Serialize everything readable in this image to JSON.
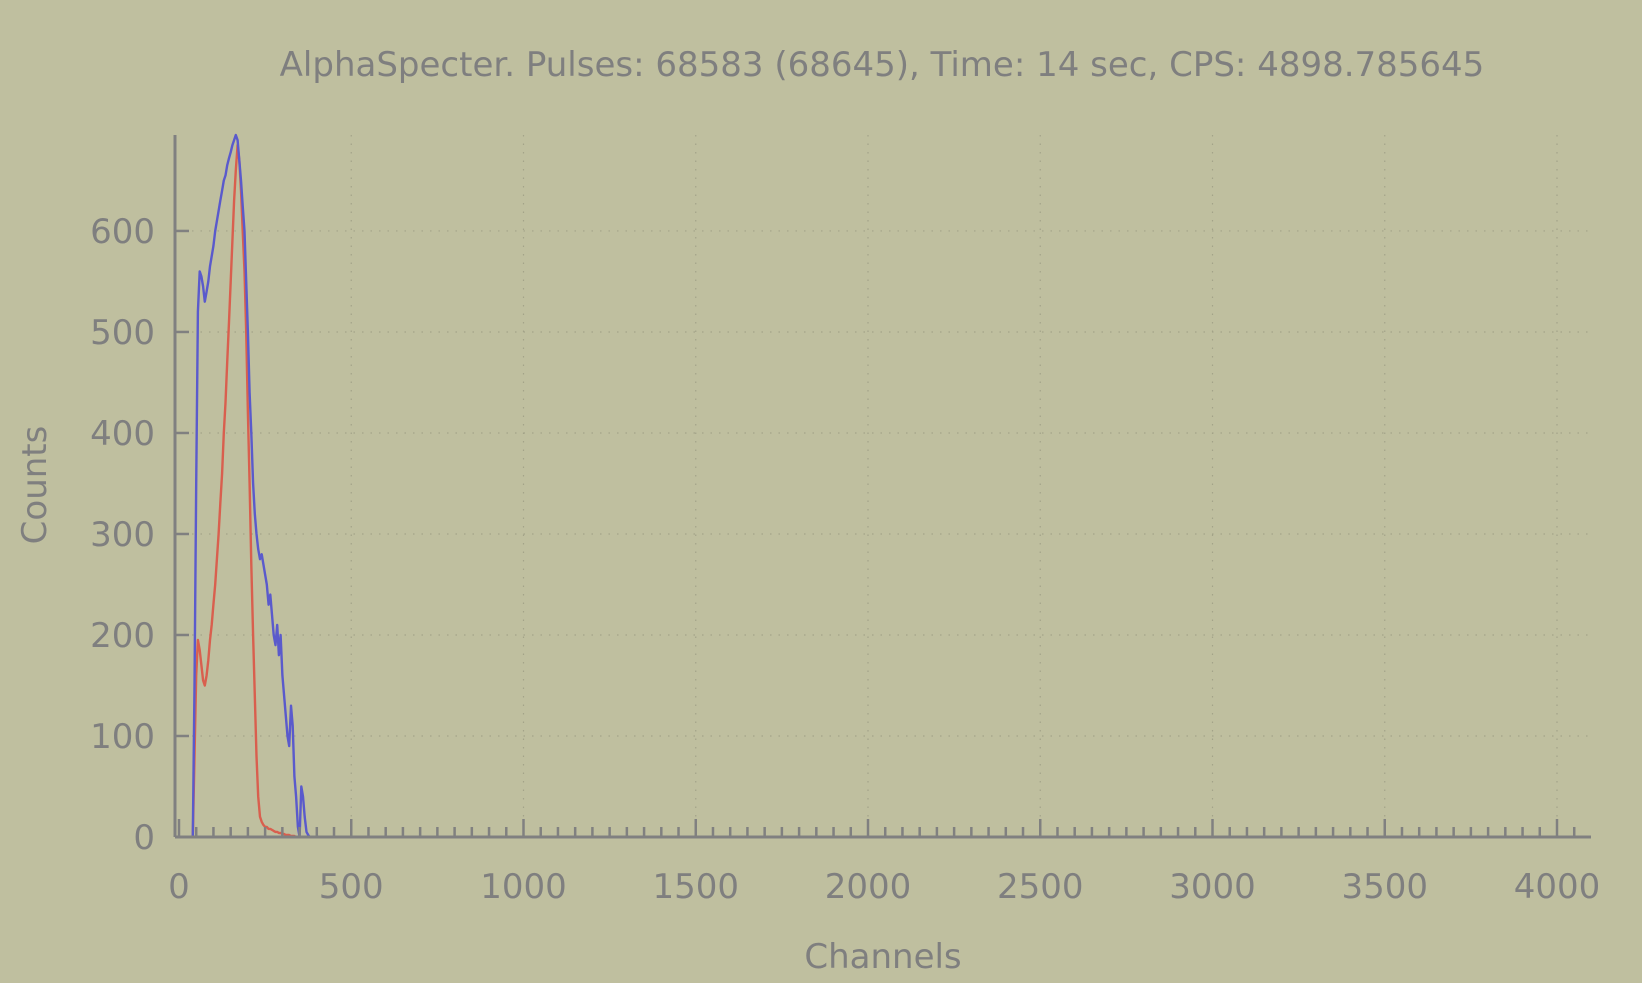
{
  "chart_data": {
    "type": "line",
    "title": "AlphaSpecter. Pulses: 68583 (68645), Time: 14 sec, CPS: 4898.785645",
    "xlabel": "Channels",
    "ylabel": "Counts",
    "xlim": [
      0,
      4096
    ],
    "ylim": [
      0,
      695
    ],
    "xticks": [
      0,
      500,
      1000,
      1500,
      2000,
      2500,
      3000,
      3500,
      4000
    ],
    "yticks": [
      0,
      100,
      200,
      300,
      400,
      500,
      600
    ],
    "x_minor_step": 50,
    "grid": true,
    "legend": "none",
    "colors": {
      "background": "#bfbf9f",
      "series_blue": "#5a5acc",
      "series_red": "#d95f4e",
      "text": "#7f7f7f"
    },
    "series": [
      {
        "color": "#5a5acc",
        "x": [
          40,
          45,
          50,
          55,
          60,
          65,
          70,
          75,
          80,
          85,
          90,
          95,
          100,
          105,
          110,
          115,
          120,
          125,
          130,
          135,
          140,
          145,
          150,
          155,
          160,
          165,
          170,
          175,
          180,
          185,
          190,
          195,
          200,
          205,
          210,
          215,
          220,
          225,
          230,
          235,
          240,
          245,
          250,
          255,
          260,
          265,
          270,
          275,
          280,
          285,
          290,
          295,
          300,
          305,
          310,
          315,
          320,
          325,
          330,
          335,
          340,
          345,
          350,
          355,
          360,
          365,
          370,
          375,
          380,
          385,
          390
        ],
        "values": [
          0,
          150,
          350,
          520,
          560,
          555,
          545,
          530,
          540,
          550,
          565,
          575,
          585,
          600,
          610,
          620,
          630,
          640,
          650,
          655,
          665,
          672,
          678,
          685,
          690,
          695,
          690,
          670,
          650,
          625,
          600,
          550,
          500,
          440,
          400,
          350,
          320,
          300,
          285,
          275,
          280,
          270,
          260,
          250,
          230,
          240,
          220,
          200,
          190,
          210,
          180,
          200,
          160,
          140,
          120,
          100,
          90,
          130,
          110,
          60,
          40,
          10,
          0,
          50,
          40,
          20,
          5,
          2,
          0,
          0,
          0
        ]
      },
      {
        "color": "#d95f4e",
        "x": [
          40,
          45,
          50,
          55,
          60,
          65,
          70,
          75,
          80,
          85,
          90,
          95,
          100,
          105,
          110,
          115,
          120,
          125,
          130,
          135,
          140,
          145,
          150,
          155,
          160,
          165,
          170,
          175,
          180,
          185,
          190,
          195,
          200,
          205,
          210,
          215,
          220,
          225,
          230,
          235,
          240,
          245,
          250,
          255,
          260,
          265,
          270,
          275,
          280,
          285,
          290,
          295,
          300,
          305,
          310,
          315,
          320,
          325,
          330,
          335,
          340,
          345,
          350,
          355,
          360,
          365,
          370,
          375,
          380,
          385,
          390
        ],
        "values": [
          0,
          80,
          160,
          195,
          185,
          170,
          155,
          150,
          160,
          175,
          195,
          210,
          230,
          250,
          275,
          300,
          330,
          360,
          400,
          430,
          470,
          510,
          550,
          590,
          630,
          660,
          685,
          670,
          640,
          600,
          560,
          500,
          420,
          350,
          270,
          200,
          140,
          80,
          40,
          20,
          15,
          12,
          10,
          10,
          8,
          8,
          7,
          6,
          5,
          5,
          4,
          4,
          3,
          3,
          2,
          2,
          2,
          1,
          1,
          1,
          0,
          0,
          0,
          0,
          0,
          0,
          0,
          0,
          0,
          0,
          0
        ]
      }
    ]
  }
}
